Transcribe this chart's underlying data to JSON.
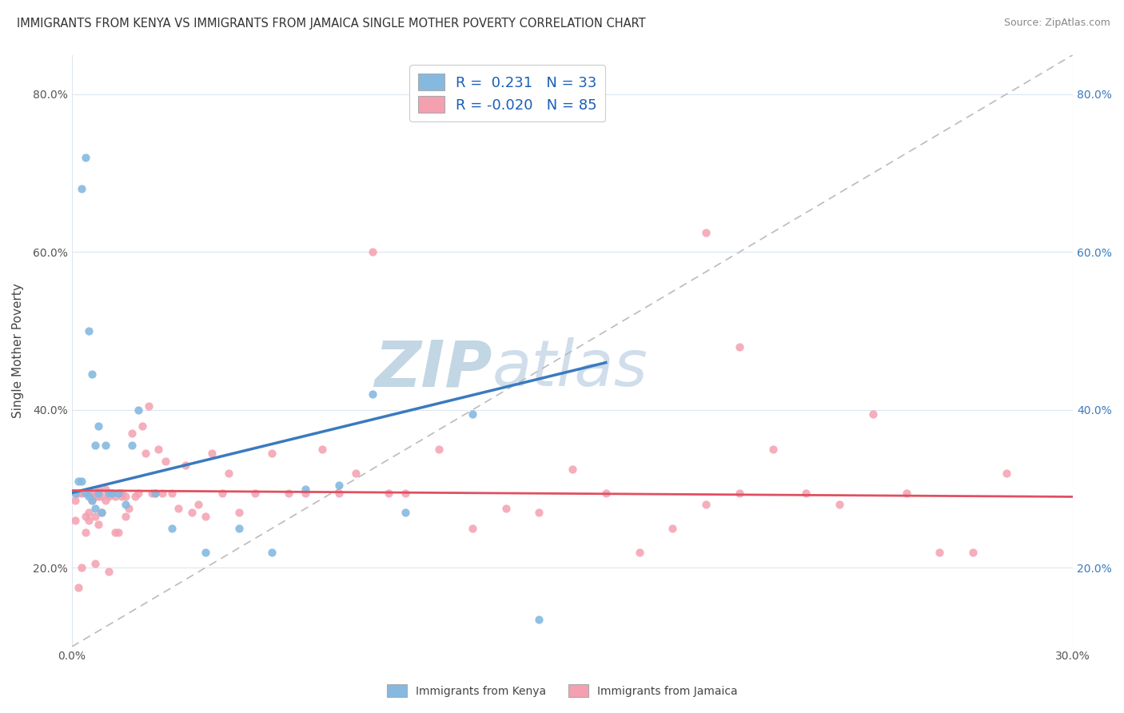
{
  "title": "IMMIGRANTS FROM KENYA VS IMMIGRANTS FROM JAMAICA SINGLE MOTHER POVERTY CORRELATION CHART",
  "source": "Source: ZipAtlas.com",
  "ylabel": "Single Mother Poverty",
  "xlim": [
    0.0,
    0.3
  ],
  "ylim": [
    0.1,
    0.85
  ],
  "y_ticks": [
    0.2,
    0.4,
    0.6,
    0.8
  ],
  "y_tick_labels": [
    "20.0%",
    "40.0%",
    "60.0%",
    "80.0%"
  ],
  "kenya_color": "#85b9e0",
  "jamaica_color": "#f4a0b0",
  "kenya_line_color": "#3a7abf",
  "jamaica_line_color": "#e05060",
  "kenya_R": 0.231,
  "kenya_N": 33,
  "jamaica_R": -0.02,
  "jamaica_N": 85,
  "kenya_scatter_x": [
    0.001,
    0.002,
    0.003,
    0.003,
    0.004,
    0.004,
    0.005,
    0.005,
    0.006,
    0.006,
    0.007,
    0.007,
    0.008,
    0.008,
    0.009,
    0.01,
    0.011,
    0.012,
    0.014,
    0.016,
    0.018,
    0.02,
    0.025,
    0.03,
    0.04,
    0.05,
    0.06,
    0.07,
    0.08,
    0.09,
    0.1,
    0.12,
    0.14
  ],
  "kenya_scatter_y": [
    0.295,
    0.31,
    0.68,
    0.31,
    0.72,
    0.295,
    0.5,
    0.29,
    0.445,
    0.285,
    0.355,
    0.275,
    0.38,
    0.295,
    0.27,
    0.355,
    0.295,
    0.295,
    0.295,
    0.28,
    0.355,
    0.4,
    0.295,
    0.25,
    0.22,
    0.25,
    0.22,
    0.3,
    0.305,
    0.42,
    0.27,
    0.395,
    0.135
  ],
  "jamaica_scatter_x": [
    0.001,
    0.001,
    0.002,
    0.002,
    0.003,
    0.003,
    0.004,
    0.004,
    0.005,
    0.005,
    0.005,
    0.006,
    0.006,
    0.007,
    0.007,
    0.007,
    0.008,
    0.008,
    0.008,
    0.009,
    0.009,
    0.01,
    0.01,
    0.011,
    0.011,
    0.012,
    0.013,
    0.013,
    0.014,
    0.015,
    0.015,
    0.016,
    0.016,
    0.017,
    0.018,
    0.019,
    0.02,
    0.021,
    0.022,
    0.023,
    0.024,
    0.025,
    0.026,
    0.027,
    0.028,
    0.03,
    0.032,
    0.034,
    0.036,
    0.038,
    0.04,
    0.042,
    0.045,
    0.047,
    0.05,
    0.055,
    0.06,
    0.065,
    0.07,
    0.075,
    0.08,
    0.085,
    0.09,
    0.095,
    0.1,
    0.11,
    0.12,
    0.13,
    0.14,
    0.15,
    0.16,
    0.17,
    0.18,
    0.19,
    0.2,
    0.21,
    0.22,
    0.23,
    0.24,
    0.25,
    0.19,
    0.2,
    0.26,
    0.27,
    0.28
  ],
  "jamaica_scatter_y": [
    0.285,
    0.26,
    0.295,
    0.175,
    0.2,
    0.295,
    0.245,
    0.265,
    0.27,
    0.295,
    0.26,
    0.285,
    0.295,
    0.205,
    0.265,
    0.29,
    0.29,
    0.3,
    0.255,
    0.27,
    0.29,
    0.285,
    0.3,
    0.195,
    0.29,
    0.295,
    0.245,
    0.29,
    0.245,
    0.29,
    0.295,
    0.265,
    0.29,
    0.275,
    0.37,
    0.29,
    0.295,
    0.38,
    0.345,
    0.405,
    0.295,
    0.295,
    0.35,
    0.295,
    0.335,
    0.295,
    0.275,
    0.33,
    0.27,
    0.28,
    0.265,
    0.345,
    0.295,
    0.32,
    0.27,
    0.295,
    0.345,
    0.295,
    0.295,
    0.35,
    0.295,
    0.32,
    0.6,
    0.295,
    0.295,
    0.35,
    0.25,
    0.275,
    0.27,
    0.325,
    0.295,
    0.22,
    0.25,
    0.28,
    0.295,
    0.35,
    0.295,
    0.28,
    0.395,
    0.295,
    0.625,
    0.48,
    0.22,
    0.22,
    0.32
  ],
  "watermark": "ZIPatlas",
  "watermark_color": "#c5d8ea",
  "background_color": "#ffffff",
  "grid_color": "#dce6f0",
  "legend_label_kenya": "Immigrants from Kenya",
  "legend_label_jamaica": "Immigrants from Jamaica"
}
